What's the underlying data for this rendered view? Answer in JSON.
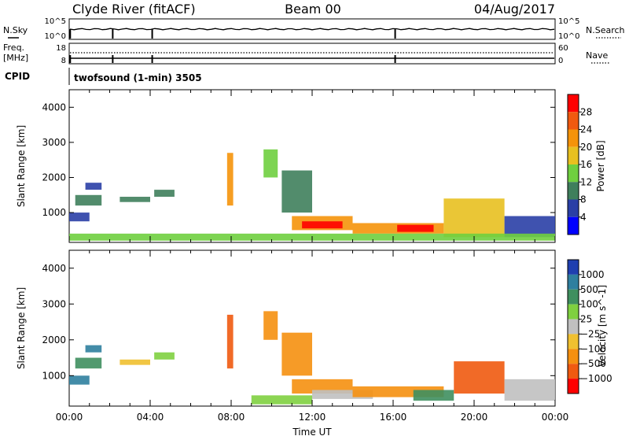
{
  "header": {
    "station": "Clyde River (fitACF)",
    "beam": "Beam 00",
    "date": "04/Aug/2017"
  },
  "strip_panels": {
    "nsky": {
      "left_label": "N.Sky",
      "left_ticks": [
        "10^5",
        "10^0"
      ],
      "right_label": "N.Search",
      "right_ticks": [
        "10^5",
        "10^0"
      ]
    },
    "freq": {
      "left_label_lines": [
        "Freq.",
        "[MHz]"
      ],
      "left_ticks": [
        "18",
        "8"
      ],
      "right_label": "Nave",
      "right_ticks": [
        "60",
        "0"
      ]
    },
    "cpid": {
      "label": "CPID",
      "text": "twofsound (1-min) 3505"
    }
  },
  "chart_data": [
    {
      "type": "heatmap",
      "title": "",
      "xlabel": "",
      "ylabel": "Slant Range [km]",
      "xlim_hours_ut": [
        0,
        24
      ],
      "ylim_km": [
        150,
        4500
      ],
      "x_tick_labels": [
        "00:00",
        "04:00",
        "08:00",
        "12:00",
        "16:00",
        "20:00",
        "00:00"
      ],
      "y_tick_values": [
        1000,
        2000,
        3000,
        4000
      ],
      "colorbar": {
        "label": "Power [dB]",
        "tick_labels": [
          "4",
          "8",
          "12",
          "16",
          "20",
          "24",
          "28"
        ],
        "bands": [
          {
            "from": 0,
            "to": 4,
            "color": "#0000ff"
          },
          {
            "from": 4,
            "to": 8,
            "color": "#2a3fa6"
          },
          {
            "from": 8,
            "to": 12,
            "color": "#3f7f5c"
          },
          {
            "from": 12,
            "to": 16,
            "color": "#6fcf3f"
          },
          {
            "from": 16,
            "to": 20,
            "color": "#e8c020"
          },
          {
            "from": 20,
            "to": 24,
            "color": "#f5930a"
          },
          {
            "from": 24,
            "to": 28,
            "color": "#f05a10"
          },
          {
            "from": 28,
            "to": 32,
            "color": "#ff0000"
          }
        ]
      },
      "echo_regions": [
        {
          "t0": 0.0,
          "t1": 1.0,
          "r0": 750,
          "r1": 1000,
          "value": 6
        },
        {
          "t0": 0.3,
          "t1": 1.6,
          "r0": 1200,
          "r1": 1500,
          "value": 10
        },
        {
          "t0": 0.8,
          "t1": 1.6,
          "r0": 1650,
          "r1": 1850,
          "value": 6
        },
        {
          "t0": 2.5,
          "t1": 4.0,
          "r0": 1300,
          "r1": 1450,
          "value": 10
        },
        {
          "t0": 4.2,
          "t1": 5.2,
          "r0": 1450,
          "r1": 1650,
          "value": 8
        },
        {
          "t0": 7.8,
          "t1": 8.1,
          "r0": 1200,
          "r1": 2700,
          "value": 22
        },
        {
          "t0": 9.6,
          "t1": 10.3,
          "r0": 2000,
          "r1": 2800,
          "value": 14
        },
        {
          "t0": 10.5,
          "t1": 12.0,
          "r0": 1000,
          "r1": 2200,
          "value": 10
        },
        {
          "t0": 11.0,
          "t1": 14.0,
          "r0": 500,
          "r1": 900,
          "value": 22
        },
        {
          "t0": 11.5,
          "t1": 13.5,
          "r0": 550,
          "r1": 750,
          "value": 29
        },
        {
          "t0": 14.0,
          "t1": 18.5,
          "r0": 400,
          "r1": 700,
          "value": 22
        },
        {
          "t0": 16.2,
          "t1": 18.0,
          "r0": 450,
          "r1": 650,
          "value": 29
        },
        {
          "t0": 18.5,
          "t1": 21.5,
          "r0": 300,
          "r1": 1400,
          "value": 18
        },
        {
          "t0": 21.5,
          "t1": 24.0,
          "r0": 300,
          "r1": 900,
          "value": 6
        },
        {
          "t0": 0.0,
          "t1": 24.0,
          "r0": 200,
          "r1": 400,
          "value": 12
        }
      ]
    },
    {
      "type": "heatmap",
      "title": "",
      "xlabel": "Time UT",
      "ylabel": "Slant Range [km]",
      "xlim_hours_ut": [
        0,
        24
      ],
      "ylim_km": [
        150,
        4500
      ],
      "x_tick_labels": [
        "00:00",
        "04:00",
        "08:00",
        "12:00",
        "16:00",
        "20:00",
        "00:00"
      ],
      "y_tick_values": [
        1000,
        2000,
        3000,
        4000
      ],
      "colorbar": {
        "label": "Velocity [m s^-1]",
        "tick_labels": [
          "1000",
          "500",
          "100",
          "25",
          "−25",
          "−100",
          "−500",
          "−1000"
        ],
        "bands": [
          {
            "from": 1000,
            "to": 1500,
            "color": "#1f3fb0"
          },
          {
            "from": 500,
            "to": 1000,
            "color": "#2f7f9f"
          },
          {
            "from": 100,
            "to": 500,
            "color": "#3f8f5f"
          },
          {
            "from": 25,
            "to": 100,
            "color": "#7fd040"
          },
          {
            "from": -25,
            "to": 25,
            "color": "#c0c0c0"
          },
          {
            "from": -100,
            "to": -25,
            "color": "#f0c030"
          },
          {
            "from": -500,
            "to": -100,
            "color": "#f59010"
          },
          {
            "from": -1000,
            "to": -500,
            "color": "#f05a10"
          },
          {
            "from": -1500,
            "to": -1000,
            "color": "#ff0000"
          }
        ]
      },
      "echo_regions": [
        {
          "t0": 0.0,
          "t1": 1.0,
          "r0": 750,
          "r1": 1000,
          "value": 800
        },
        {
          "t0": 0.3,
          "t1": 1.6,
          "r0": 1200,
          "r1": 1500,
          "value": 300
        },
        {
          "t0": 0.8,
          "t1": 1.6,
          "r0": 1650,
          "r1": 1850,
          "value": 600
        },
        {
          "t0": 2.5,
          "t1": 4.0,
          "r0": 1300,
          "r1": 1450,
          "value": -60
        },
        {
          "t0": 4.2,
          "t1": 5.2,
          "r0": 1450,
          "r1": 1650,
          "value": 60
        },
        {
          "t0": 7.8,
          "t1": 8.1,
          "r0": 1200,
          "r1": 2700,
          "value": -700
        },
        {
          "t0": 9.6,
          "t1": 10.3,
          "r0": 2000,
          "r1": 2800,
          "value": -200
        },
        {
          "t0": 10.5,
          "t1": 12.0,
          "r0": 1000,
          "r1": 2200,
          "value": -200
        },
        {
          "t0": 11.0,
          "t1": 14.0,
          "r0": 500,
          "r1": 900,
          "value": -300
        },
        {
          "t0": 12.0,
          "t1": 15.0,
          "r0": 350,
          "r1": 600,
          "value": 0
        },
        {
          "t0": 14.0,
          "t1": 18.5,
          "r0": 400,
          "r1": 700,
          "value": -200
        },
        {
          "t0": 17.0,
          "t1": 19.0,
          "r0": 300,
          "r1": 600,
          "value": 200
        },
        {
          "t0": 19.0,
          "t1": 21.5,
          "r0": 500,
          "r1": 1400,
          "value": -600
        },
        {
          "t0": 21.5,
          "t1": 24.0,
          "r0": 300,
          "r1": 900,
          "value": 0
        },
        {
          "t0": 9.0,
          "t1": 12.0,
          "r0": 200,
          "r1": 450,
          "value": 60
        }
      ]
    }
  ]
}
